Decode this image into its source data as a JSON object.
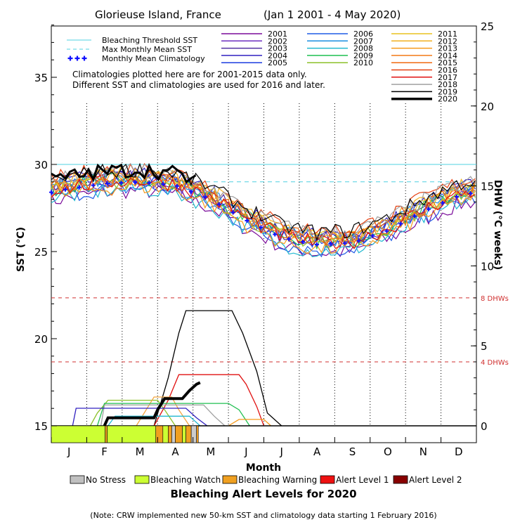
{
  "chart_data": {
    "type": "line",
    "title": "Glorieuse Island, France",
    "date_range": "(Jan 1 2001 - 4 May 2020)",
    "xlabel": "Month",
    "ylabel_left": "SST (°C)",
    "ylabel_right": "DHW (°C weeks)",
    "months": [
      "J",
      "F",
      "M",
      "A",
      "M",
      "J",
      "J",
      "A",
      "S",
      "O",
      "N",
      "D"
    ],
    "sst_axis": {
      "min": 14,
      "max": 38.5,
      "ticks": [
        15,
        20,
        25,
        30,
        35
      ]
    },
    "dhw_axis": {
      "min": 0,
      "max": 25,
      "ticks": [
        0,
        5,
        10,
        15,
        20,
        25
      ]
    },
    "bleaching_threshold_sst": 30.0,
    "max_monthly_mean_sst": 29.0,
    "dhw_reference_lines": [
      {
        "value": 4,
        "label": "4 DHWs"
      },
      {
        "value": 8,
        "label": "8 DHWs"
      }
    ],
    "legend_lines": [
      {
        "label": "Bleaching Threshold SST",
        "color": "#4fd0e0",
        "style": "solid"
      },
      {
        "label": "Max Monthly Mean SST",
        "color": "#4fd0e0",
        "style": "dashed"
      },
      {
        "label": "Monthly Mean Climatology",
        "color": "#1010ff",
        "style": "plus"
      }
    ],
    "climatology_note": [
      "Climatologies plotted here are for 2001-2015 data only.",
      "Different SST and climatologies are used for 2016 and later."
    ],
    "climatology_monthly": [
      28.6,
      28.9,
      29.0,
      28.8,
      28.0,
      26.8,
      25.8,
      25.4,
      25.5,
      26.2,
      27.3,
      28.2
    ],
    "years": [
      {
        "year": "2001",
        "color": "#7a0a9a"
      },
      {
        "year": "2002",
        "color": "#6d2fc0"
      },
      {
        "year": "2003",
        "color": "#5030a0"
      },
      {
        "year": "2004",
        "color": "#3020c0"
      },
      {
        "year": "2005",
        "color": "#1b3de0"
      },
      {
        "year": "2006",
        "color": "#1f5be6"
      },
      {
        "year": "2007",
        "color": "#1a8ee0"
      },
      {
        "year": "2008",
        "color": "#22b9d0"
      },
      {
        "year": "2009",
        "color": "#1fbf50"
      },
      {
        "year": "2010",
        "color": "#8cc12a"
      },
      {
        "year": "2011",
        "color": "#e8c21e"
      },
      {
        "year": "2012",
        "color": "#f2b020"
      },
      {
        "year": "2013",
        "color": "#f69a1a"
      },
      {
        "year": "2014",
        "color": "#f37a16"
      },
      {
        "year": "2015",
        "color": "#f06a10"
      },
      {
        "year": "2016",
        "color": "#e64010"
      },
      {
        "year": "2017",
        "color": "#e01010"
      },
      {
        "year": "2018",
        "color": "#a0a0a0"
      },
      {
        "year": "2019",
        "color": "#000000"
      },
      {
        "year": "2020",
        "color": "#000000"
      }
    ],
    "dhw_series": [
      {
        "year": "2019",
        "color": "#000000",
        "points": [
          [
            2.9,
            0
          ],
          [
            3.3,
            3
          ],
          [
            3.6,
            5.8
          ],
          [
            3.8,
            7.2
          ],
          [
            5.1,
            7.2
          ],
          [
            5.4,
            5.8
          ],
          [
            5.8,
            3.4
          ],
          [
            6.1,
            0.8
          ],
          [
            6.5,
            0
          ]
        ]
      },
      {
        "year": "2017",
        "color": "#e01010",
        "points": [
          [
            2.9,
            0
          ],
          [
            3.3,
            1.6
          ],
          [
            3.6,
            3.2
          ],
          [
            5.3,
            3.2
          ],
          [
            5.5,
            2.6
          ],
          [
            5.8,
            1.2
          ],
          [
            6.0,
            0
          ]
        ]
      },
      {
        "year": "2010",
        "color": "#8cc12a",
        "points": [
          [
            1.1,
            0
          ],
          [
            1.3,
            0.8
          ],
          [
            1.6,
            1.6
          ],
          [
            2.3,
            1.6
          ],
          [
            3.0,
            1.6
          ],
          [
            3.2,
            1.0
          ],
          [
            3.5,
            0
          ]
        ]
      },
      {
        "year": "2020_dhw_orange",
        "color": "#f4a640",
        "points": [
          [
            2.4,
            0
          ],
          [
            2.9,
            1.8
          ],
          [
            3.4,
            1.8
          ],
          [
            3.6,
            1.0
          ],
          [
            3.9,
            0
          ]
        ]
      },
      {
        "year": "2009",
        "color": "#1fbf50",
        "points": [
          [
            1.3,
            0
          ],
          [
            1.5,
            1.4
          ],
          [
            1.6,
            1.4
          ],
          [
            4.0,
            1.4
          ],
          [
            5.0,
            1.4
          ],
          [
            5.3,
            1.0
          ],
          [
            5.6,
            0
          ]
        ]
      },
      {
        "year": "2018",
        "color": "#a0a0a0",
        "points": [
          [
            1.4,
            0
          ],
          [
            1.5,
            1.3
          ],
          [
            3.1,
            1.3
          ],
          [
            4.3,
            1.3
          ],
          [
            4.6,
            0.6
          ],
          [
            4.9,
            0
          ]
        ]
      },
      {
        "year": "2004",
        "color": "#3020c0",
        "points": [
          [
            0.6,
            0
          ],
          [
            0.7,
            1.1
          ],
          [
            1.5,
            1.1
          ],
          [
            3.8,
            1.1
          ],
          [
            4.1,
            0.5
          ],
          [
            4.4,
            0
          ]
        ]
      },
      {
        "year": "2008",
        "color": "#22b9d0",
        "points": [
          [
            1.6,
            0
          ],
          [
            1.8,
            0.6
          ],
          [
            3.9,
            0.6
          ],
          [
            4.2,
            0
          ]
        ]
      },
      {
        "year": "2013",
        "color": "#f69a1a",
        "points": [
          [
            5.0,
            0
          ],
          [
            5.3,
            0.4
          ],
          [
            6.0,
            0.4
          ],
          [
            6.2,
            0
          ]
        ]
      },
      {
        "year": "2020",
        "color": "#000000",
        "points": [
          [
            1.5,
            0
          ],
          [
            1.6,
            0.5
          ],
          [
            2.9,
            0.5
          ],
          [
            3.0,
            1.0
          ],
          [
            3.2,
            1.7
          ],
          [
            3.7,
            1.7
          ],
          [
            3.9,
            2.2
          ],
          [
            4.1,
            2.6
          ],
          [
            4.2,
            2.7
          ]
        ]
      }
    ],
    "alert_strip": {
      "segments": [
        {
          "from": 0,
          "to": 1.52,
          "color": "#ccff33"
        },
        {
          "from": 1.52,
          "to": 1.58,
          "color": "#f0a020"
        },
        {
          "from": 1.58,
          "to": 2.95,
          "color": "#ccff33"
        },
        {
          "from": 2.95,
          "to": 3.15,
          "color": "#f0a020"
        },
        {
          "from": 3.15,
          "to": 3.3,
          "color": "#ccff33"
        },
        {
          "from": 3.3,
          "to": 3.4,
          "color": "#f0a020"
        },
        {
          "from": 3.4,
          "to": 3.5,
          "color": "#cccccc"
        },
        {
          "from": 3.5,
          "to": 3.7,
          "color": "#f0a020"
        },
        {
          "from": 3.7,
          "to": 3.8,
          "color": "#ccff33"
        },
        {
          "from": 3.8,
          "to": 3.95,
          "color": "#f0a020"
        },
        {
          "from": 3.95,
          "to": 4.1,
          "color": "#cccccc"
        },
        {
          "from": 4.1,
          "to": 4.15,
          "color": "#f0a020"
        }
      ]
    },
    "alert_legend_title": "Bleaching Alert Levels for 2020",
    "alert_levels": [
      {
        "label": "No Stress",
        "color": "#c0c0c0"
      },
      {
        "label": "Bleaching Watch",
        "color": "#ccff33"
      },
      {
        "label": "Bleaching Warning",
        "color": "#f0a020"
      },
      {
        "label": "Alert Level 1",
        "color": "#ee1111"
      },
      {
        "label": "Alert Level 2",
        "color": "#880000"
      }
    ],
    "grid": "vertical dotted at month boundaries (Feb-Nov)"
  },
  "footer_note": "(Note: CRW implemented new 50-km SST and climatology data starting 1 February 2016)"
}
